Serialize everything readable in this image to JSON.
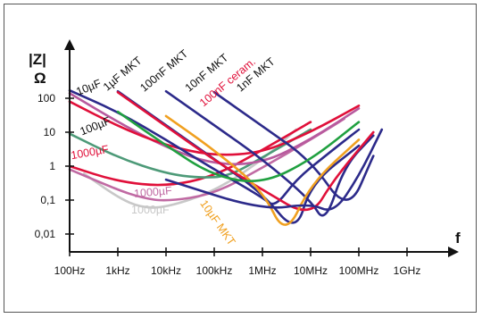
{
  "chart_data": {
    "type": "line",
    "title": "",
    "xscale": "log",
    "yscale": "log",
    "xlabel": "f",
    "ylabel": "|Z|",
    "yunit": "Ω",
    "xlim": [
      100,
      1000000000
    ],
    "ylim": [
      0.005,
      300
    ],
    "grid": false,
    "x_ticks": [
      {
        "value": 100,
        "label": "100Hz"
      },
      {
        "value": 1000,
        "label": "1kHz"
      },
      {
        "value": 10000,
        "label": "10kHz"
      },
      {
        "value": 100000,
        "label": "100kHz"
      },
      {
        "value": 1000000,
        "label": "1MHz"
      },
      {
        "value": 10000000,
        "label": "10MHz"
      },
      {
        "value": 100000000,
        "label": "100MHz"
      },
      {
        "value": 1000000000,
        "label": "1GHz"
      }
    ],
    "y_ticks": [
      {
        "value": 0.01,
        "label": "0,01"
      },
      {
        "value": 0.1,
        "label": "0,1"
      },
      {
        "value": 1,
        "label": "1"
      },
      {
        "value": 10,
        "label": "10"
      },
      {
        "value": 100,
        "label": "100"
      }
    ],
    "series": [
      {
        "name": "1000µF",
        "color": "#c8c8c8",
        "points": [
          [
            200,
            0.6
          ],
          [
            1000,
            0.12
          ],
          [
            3000,
            0.06
          ],
          [
            10000,
            0.06
          ],
          [
            100000,
            0.18
          ],
          [
            1000000,
            1.5
          ],
          [
            5000000,
            12
          ]
        ]
      },
      {
        "name": "1000µF",
        "color": "#c06aa3",
        "points": [
          [
            100,
            0.8
          ],
          [
            1000,
            0.2
          ],
          [
            3000,
            0.12
          ],
          [
            10000,
            0.09
          ],
          [
            100000,
            0.15
          ],
          [
            1000000,
            0.9
          ],
          [
            10000000,
            6
          ],
          [
            50000000,
            25
          ]
        ]
      },
      {
        "name": "1000µF",
        "color": "#e0103a",
        "points": [
          [
            100,
            1.0
          ],
          [
            1000,
            0.35
          ],
          [
            10000,
            0.25
          ],
          [
            100000,
            0.5
          ],
          [
            1000000,
            3
          ],
          [
            10000000,
            20
          ]
        ]
      },
      {
        "name": "100µF",
        "color": "#4d9a78",
        "points": [
          [
            100,
            9
          ],
          [
            1000,
            1.8
          ],
          [
            10000,
            0.6
          ],
          [
            50000,
            0.45
          ],
          [
            200000,
            0.5
          ],
          [
            1000000,
            1.8
          ],
          [
            10000000,
            12
          ]
        ]
      },
      {
        "name": "10µF",
        "color": "#b85a9e",
        "points": [
          [
            100,
            140
          ],
          [
            1000,
            20
          ],
          [
            10000,
            3.5
          ],
          [
            100000,
            1.1
          ],
          [
            1000000,
            1.2
          ],
          [
            10000000,
            6
          ],
          [
            100000000,
            50
          ]
        ]
      },
      {
        "name": "10µF",
        "color": "#e0103a",
        "points": [
          [
            100,
            80
          ],
          [
            1000,
            15
          ],
          [
            10000,
            4
          ],
          [
            100000,
            2
          ],
          [
            1000000,
            2.5
          ],
          [
            10000000,
            10
          ],
          [
            100000000,
            60
          ]
        ]
      },
      {
        "name": "1µF MKT",
        "color": "#2c2a8a",
        "points": [
          [
            100,
            170
          ],
          [
            1000,
            40
          ],
          [
            10000,
            6
          ],
          [
            100000,
            0.8
          ],
          [
            1000000,
            0.12
          ],
          [
            1800000,
            0.06
          ],
          [
            5000000,
            0.4
          ],
          [
            20000000,
            2
          ],
          [
            100000000,
            12
          ]
        ]
      },
      {
        "name": "100nF MKT",
        "color": "#2c2a8a",
        "points": [
          [
            1000,
            160
          ],
          [
            10000,
            16
          ],
          [
            100000,
            1.6
          ],
          [
            1000000,
            0.16
          ],
          [
            5000000,
            0.01
          ],
          [
            10000000,
            0.3
          ],
          [
            100000000,
            4
          ]
        ]
      },
      {
        "name": "10nF MKT",
        "color": "#2c2a8a",
        "points": [
          [
            10000,
            160
          ],
          [
            100000,
            16
          ],
          [
            1000000,
            1.6
          ],
          [
            10000000,
            0.1
          ],
          [
            20000000,
            0.02
          ],
          [
            50000000,
            1
          ],
          [
            200000000,
            8
          ]
        ]
      },
      {
        "name": "1nF MKT",
        "color": "#2c2a8a",
        "points": [
          [
            100000,
            150
          ],
          [
            1000000,
            15
          ],
          [
            10000000,
            1.5
          ],
          [
            60000000,
            0.04
          ],
          [
            200000000,
            2
          ]
        ]
      },
      {
        "name": "100nF ceram.",
        "color": "#e0103a",
        "points": [
          [
            1000,
            150
          ],
          [
            10000,
            15
          ],
          [
            100000,
            1.5
          ],
          [
            1000000,
            0.2
          ],
          [
            10000000,
            0.03
          ],
          [
            30000000,
            0.4
          ],
          [
            200000000,
            10
          ]
        ]
      },
      {
        "name": "10µF MKT",
        "color": "#f0a020",
        "points": [
          [
            10000,
            30
          ],
          [
            100000,
            3
          ],
          [
            1000000,
            0.2
          ],
          [
            3000000,
            0.008
          ],
          [
            10000000,
            0.3
          ],
          [
            100000000,
            6
          ]
        ]
      },
      {
        "name": "",
        "color": "#20a040",
        "points": [
          [
            1000,
            40
          ],
          [
            10000,
            4
          ],
          [
            100000,
            0.5
          ],
          [
            1000000,
            0.3
          ],
          [
            10000000,
            1.5
          ],
          [
            100000000,
            20
          ]
        ]
      },
      {
        "name": "",
        "color": "#2c2a8a",
        "points": [
          [
            10000,
            0.4
          ],
          [
            1000000,
            0.05
          ],
          [
            10000000,
            0.08
          ],
          [
            30000000,
            0.04
          ],
          [
            100000000,
            0.5
          ],
          [
            300000000,
            12
          ]
        ]
      }
    ],
    "labels": [
      {
        "text": "10µF",
        "color": "#111111",
        "x": 150,
        "y": 120,
        "rotate": -22
      },
      {
        "text": "1µF MKT",
        "color": "#111111",
        "x": 600,
        "y": 160,
        "rotate": -40
      },
      {
        "text": "100nF MKT",
        "color": "#111111",
        "x": 3500,
        "y": 150,
        "rotate": -40
      },
      {
        "text": "10nF MKT",
        "color": "#111111",
        "x": 30000,
        "y": 150,
        "rotate": -40
      },
      {
        "text": "1nF MKT",
        "color": "#111111",
        "x": 350000,
        "y": 150,
        "rotate": -40
      },
      {
        "text": "100nF ceram.",
        "color": "#e0103a",
        "x": 60000,
        "y": 55,
        "rotate": -40
      },
      {
        "text": "100µF",
        "color": "#111111",
        "x": 180,
        "y": 8,
        "rotate": -22
      },
      {
        "text": "1000µF",
        "color": "#e0103a",
        "x": 110,
        "y": 1.6,
        "rotate": -10
      },
      {
        "text": "1000µF",
        "color": "#c06aa3",
        "x": 2200,
        "y": 0.12,
        "rotate": -5
      },
      {
        "text": "1000µF",
        "color": "#c8c8c8",
        "x": 1900,
        "y": 0.04,
        "rotate": 0
      },
      {
        "text": "10µF MKT",
        "color": "#f0a020",
        "x": 50000,
        "y": 0.08,
        "rotate": 55
      }
    ]
  }
}
